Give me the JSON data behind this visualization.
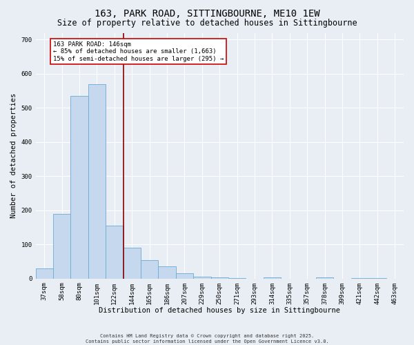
{
  "title1": "163, PARK ROAD, SITTINGBOURNE, ME10 1EW",
  "title2": "Size of property relative to detached houses in Sittingbourne",
  "xlabel": "Distribution of detached houses by size in Sittingbourne",
  "ylabel": "Number of detached properties",
  "categories": [
    "37sqm",
    "58sqm",
    "80sqm",
    "101sqm",
    "122sqm",
    "144sqm",
    "165sqm",
    "186sqm",
    "207sqm",
    "229sqm",
    "250sqm",
    "271sqm",
    "293sqm",
    "314sqm",
    "335sqm",
    "357sqm",
    "378sqm",
    "399sqm",
    "421sqm",
    "442sqm",
    "463sqm"
  ],
  "values": [
    30,
    190,
    535,
    570,
    155,
    90,
    55,
    35,
    15,
    5,
    3,
    2,
    0,
    3,
    0,
    0,
    3,
    0,
    2,
    1,
    0
  ],
  "bar_color": "#c5d8ee",
  "bar_edge_color": "#6aaad4",
  "vline_x": 4.5,
  "vline_color": "#8b0000",
  "annotation_text": "163 PARK ROAD: 146sqm\n← 85% of detached houses are smaller (1,663)\n15% of semi-detached houses are larger (295) →",
  "annotation_box_color": "#ffffff",
  "annotation_box_edge": "#cc0000",
  "ylim": [
    0,
    720
  ],
  "yticks": [
    0,
    100,
    200,
    300,
    400,
    500,
    600,
    700
  ],
  "background_color": "#e8eef4",
  "footer_text": "Contains HM Land Registry data © Crown copyright and database right 2025.\nContains public sector information licensed under the Open Government Licence v3.0.",
  "title_fontsize": 10,
  "subtitle_fontsize": 8.5,
  "axis_fontsize": 7.5,
  "tick_fontsize": 6.5,
  "annot_fontsize": 6.5
}
